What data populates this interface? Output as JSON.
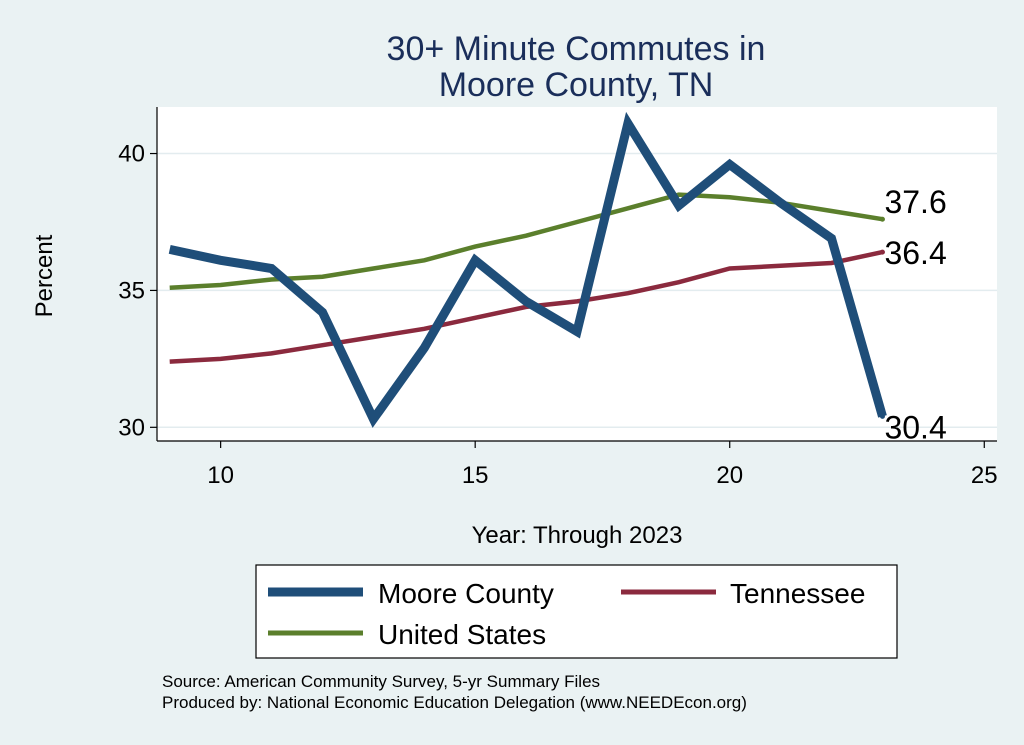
{
  "chart_data": {
    "type": "line",
    "title_lines": [
      "30+ Minute Commutes in",
      "Moore County, TN"
    ],
    "xlabel": "Year: Through 2023",
    "ylabel": "Percent",
    "xlim": [
      8.75,
      25.25
    ],
    "ylim": [
      29.5,
      41.7
    ],
    "xticks": [
      10,
      15,
      20,
      25
    ],
    "yticks": [
      30,
      35,
      40
    ],
    "grid": true,
    "legend_position": "bottom",
    "series": [
      {
        "name": "Moore County",
        "color": "#1f4e79",
        "x": [
          9,
          10,
          11,
          12,
          13,
          14,
          15,
          16,
          17,
          18,
          19,
          20,
          21,
          22,
          23
        ],
        "values": [
          36.5,
          36.1,
          35.8,
          34.2,
          30.3,
          32.9,
          36.1,
          34.6,
          33.5,
          41.1,
          38.1,
          39.6,
          38.2,
          36.9,
          30.4
        ],
        "end_label": "30.4"
      },
      {
        "name": "Tennessee",
        "color": "#8b2a3e",
        "x": [
          9,
          10,
          11,
          12,
          13,
          14,
          15,
          16,
          17,
          18,
          19,
          20,
          21,
          22,
          23
        ],
        "values": [
          32.4,
          32.5,
          32.7,
          33.0,
          33.3,
          33.6,
          34.0,
          34.4,
          34.6,
          34.9,
          35.3,
          35.8,
          35.9,
          36.0,
          36.4
        ],
        "end_label": "36.4"
      },
      {
        "name": "United States",
        "color": "#5b7f2c",
        "x": [
          9,
          10,
          11,
          12,
          13,
          14,
          15,
          16,
          17,
          18,
          19,
          20,
          21,
          22,
          23
        ],
        "values": [
          35.1,
          35.2,
          35.4,
          35.5,
          35.8,
          36.1,
          36.6,
          37.0,
          37.5,
          38.0,
          38.5,
          38.4,
          38.2,
          37.9,
          37.6
        ],
        "end_label": "37.6"
      }
    ]
  },
  "legend": {
    "items": [
      "Moore County",
      "Tennessee",
      "United States"
    ]
  },
  "source": {
    "line1": "Source: American Community Survey, 5-yr Summary Files",
    "line2": "Produced by: National Economic Education Delegation (www.NEEDEcon.org)"
  }
}
